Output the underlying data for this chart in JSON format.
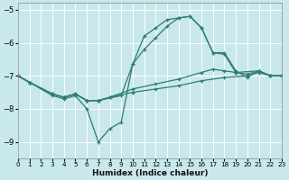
{
  "xlabel": "Humidex (Indice chaleur)",
  "bg_color": "#c8e8ec",
  "grid_color": "#ffffff",
  "line_color": "#2e7d6e",
  "xlim": [
    0,
    23
  ],
  "ylim": [
    -9.5,
    -4.8
  ],
  "yticks": [
    -9,
    -8,
    -7,
    -6,
    -5
  ],
  "xticks": [
    0,
    1,
    2,
    3,
    4,
    5,
    6,
    7,
    8,
    9,
    10,
    11,
    12,
    13,
    14,
    15,
    16,
    17,
    18,
    19,
    20,
    21,
    22,
    23
  ],
  "lines": [
    {
      "x": [
        0,
        1,
        3,
        4,
        5,
        6,
        7,
        8,
        9,
        10,
        11,
        12,
        13,
        14,
        15,
        16,
        17,
        18,
        19,
        21,
        22,
        23
      ],
      "y": [
        -7.0,
        -7.2,
        -7.6,
        -7.7,
        -7.6,
        -8.0,
        -9.0,
        -8.6,
        -8.4,
        -6.65,
        -5.8,
        -5.55,
        -5.3,
        -5.25,
        -5.2,
        -5.55,
        -6.3,
        -6.35,
        -6.9,
        -6.85,
        -7.0,
        -7.0
      ]
    },
    {
      "x": [
        0,
        1,
        3,
        4,
        5,
        6,
        7,
        8,
        10,
        12,
        14,
        16,
        17,
        18,
        19,
        20,
        21,
        22,
        23
      ],
      "y": [
        -7.0,
        -7.2,
        -7.55,
        -7.65,
        -7.55,
        -7.75,
        -7.75,
        -7.65,
        -7.4,
        -7.25,
        -7.1,
        -6.9,
        -6.8,
        -6.85,
        -6.9,
        -6.95,
        -6.85,
        -7.0,
        -7.0
      ]
    },
    {
      "x": [
        0,
        1,
        3,
        4,
        5,
        6,
        7,
        8,
        10,
        12,
        14,
        16,
        18,
        20,
        21,
        22,
        23
      ],
      "y": [
        -7.0,
        -7.2,
        -7.55,
        -7.65,
        -7.55,
        -7.75,
        -7.75,
        -7.65,
        -7.5,
        -7.4,
        -7.3,
        -7.15,
        -7.05,
        -7.0,
        -6.9,
        -7.0,
        -7.0
      ]
    },
    {
      "x": [
        0,
        1,
        3,
        4,
        5,
        6,
        7,
        9,
        10,
        11,
        12,
        13,
        14,
        15,
        16,
        17,
        18,
        19,
        20,
        21,
        22,
        23
      ],
      "y": [
        -7.0,
        -7.2,
        -7.55,
        -7.65,
        -7.55,
        -7.75,
        -7.75,
        -7.6,
        -6.65,
        -6.2,
        -5.85,
        -5.5,
        -5.25,
        -5.2,
        -5.55,
        -6.3,
        -6.3,
        -6.85,
        -7.05,
        -6.85,
        -7.0,
        -7.0
      ]
    }
  ]
}
